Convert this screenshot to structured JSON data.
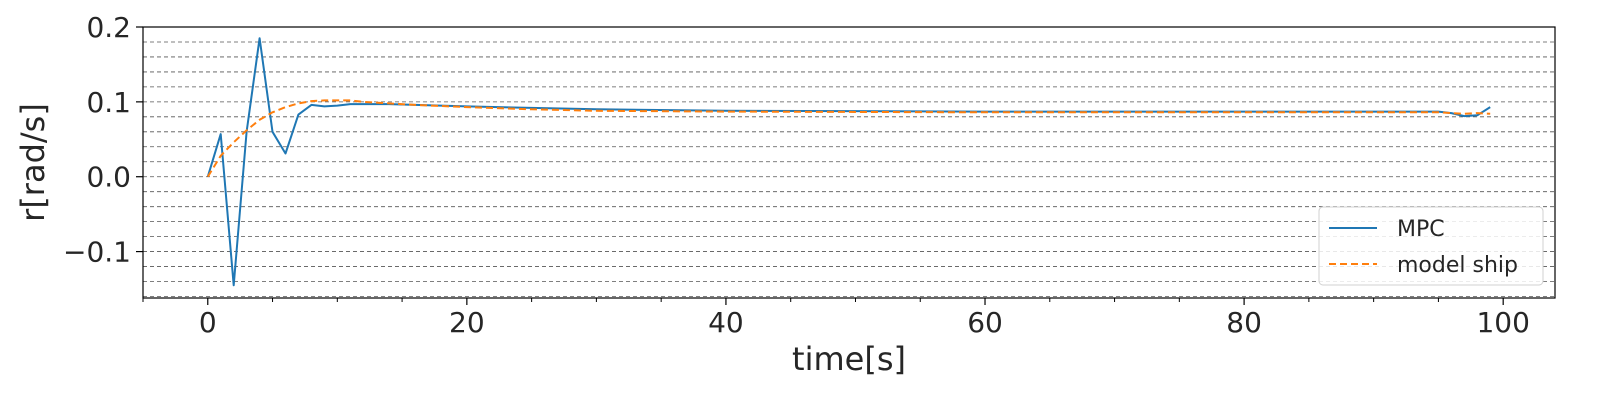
{
  "chart_data": {
    "type": "line",
    "xlabel": "time[s]",
    "ylabel": "r[rad/s]",
    "xlim": [
      -5,
      104
    ],
    "ylim": [
      -0.162,
      0.2
    ],
    "xticks": [
      0,
      20,
      40,
      60,
      80,
      100
    ],
    "xtick_labels": [
      "0",
      "20",
      "40",
      "60",
      "80",
      "100"
    ],
    "yticks": [
      -0.1,
      0.0,
      0.1,
      0.2
    ],
    "ytick_labels": [
      "−0.1",
      "0.0",
      "0.1",
      "0.2"
    ],
    "y_minor_grid_step": 0.02,
    "grid": "horizontal dashed",
    "legend_position": "lower-right",
    "series": [
      {
        "name": "MPC",
        "color": "#1f77b4",
        "style": "solid",
        "x": [
          0,
          1,
          2,
          3,
          4,
          5,
          6,
          7,
          8,
          9,
          10,
          11,
          12,
          14,
          16,
          20,
          30,
          40,
          60,
          80,
          95,
          96,
          97,
          98,
          99
        ],
        "y": [
          0.0,
          0.057,
          -0.145,
          0.06,
          0.185,
          0.06,
          0.031,
          0.083,
          0.096,
          0.094,
          0.095,
          0.097,
          0.097,
          0.097,
          0.096,
          0.094,
          0.09,
          0.088,
          0.087,
          0.087,
          0.087,
          0.085,
          0.081,
          0.082,
          0.093
        ]
      },
      {
        "name": "model ship",
        "color": "#ff7f0e",
        "style": "dashed",
        "x": [
          0,
          1,
          2,
          3,
          4,
          5,
          6,
          7,
          8,
          9,
          10,
          11,
          12,
          14,
          16,
          20,
          25,
          30,
          40,
          60,
          80,
          95,
          97,
          98,
          99
        ],
        "y": [
          0.0,
          0.028,
          0.046,
          0.062,
          0.076,
          0.086,
          0.093,
          0.098,
          0.101,
          0.102,
          0.102,
          0.102,
          0.1,
          0.098,
          0.096,
          0.093,
          0.09,
          0.088,
          0.087,
          0.086,
          0.086,
          0.086,
          0.084,
          0.085,
          0.084
        ]
      }
    ]
  }
}
